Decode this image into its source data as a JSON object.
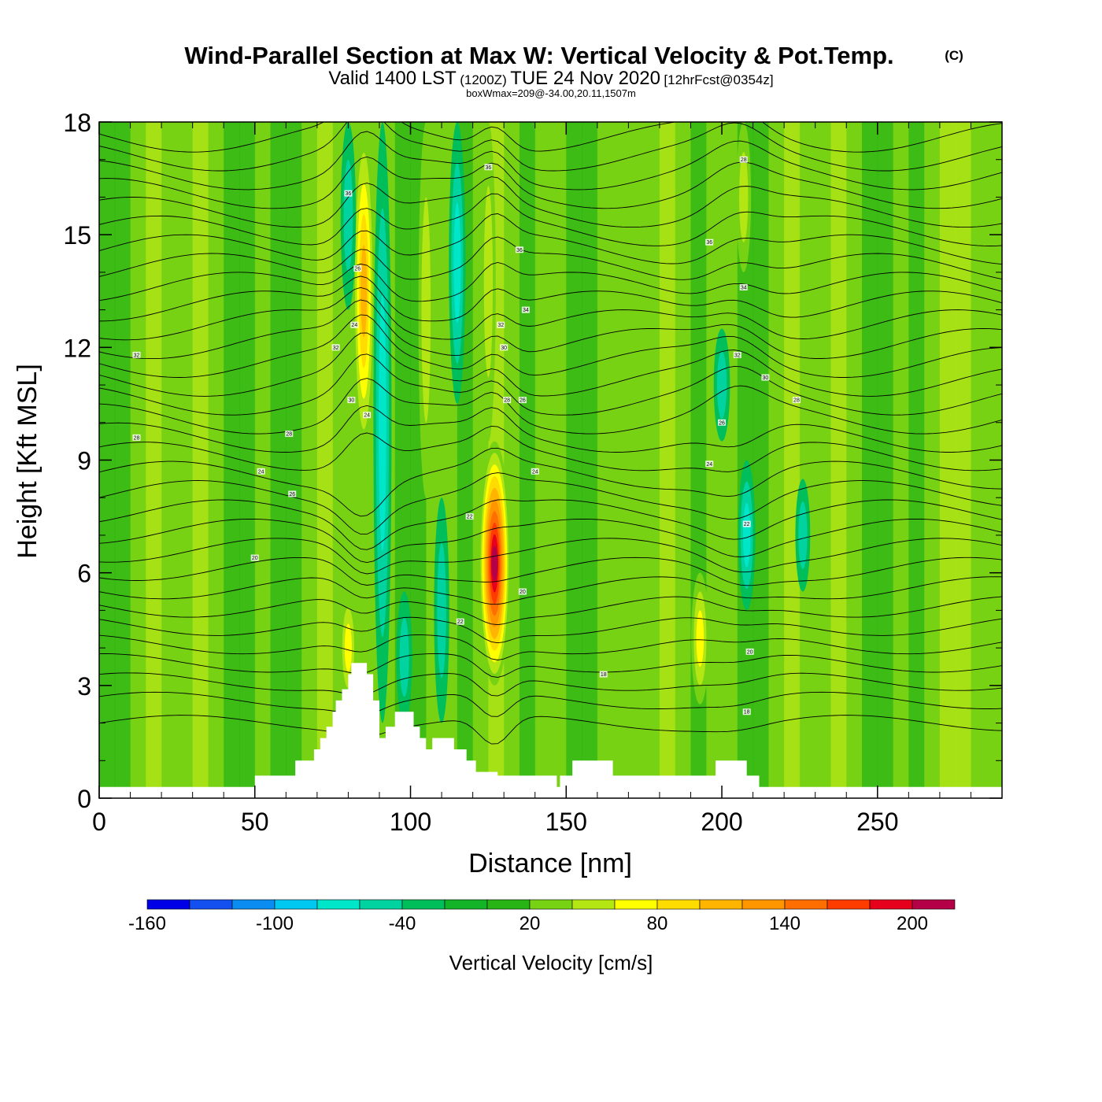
{
  "chart_data": {
    "type": "heatmap",
    "title": {
      "main": "Wind-Parallel Section at Max W: Vertical Velocity & Pot.Temp.",
      "copyright": "(C)",
      "valid_a": "Valid 1400 LST",
      "valid_b": "(1200Z)",
      "valid_c": "TUE 24 Nov 2020",
      "valid_d": "[12hrFcst@0354z]",
      "box": "boxWmax=209@-34.00,20.11,1507m"
    },
    "xlabel": "Distance [nm]",
    "ylabel": "Height [Kft MSL]",
    "xlim": [
      0,
      290
    ],
    "ylim": [
      0,
      18
    ],
    "xticks": [
      "0",
      "50",
      "100",
      "150",
      "200",
      "250"
    ],
    "xtick_values": [
      0,
      50,
      100,
      150,
      200,
      250
    ],
    "yticks": [
      "0",
      "3",
      "6",
      "9",
      "12",
      "15",
      "18"
    ],
    "ytick_values": [
      0,
      3,
      6,
      9,
      12,
      15,
      18
    ],
    "colorbar": {
      "label": "Vertical Velocity [cm/s]",
      "tick_labels": [
        "-160",
        "-100",
        "-40",
        "20",
        "80",
        "140",
        "200"
      ],
      "tick_values": [
        -160,
        -100,
        -40,
        20,
        80,
        140,
        200
      ],
      "bin_edges": [
        -160,
        -140,
        -120,
        -100,
        -80,
        -60,
        -40,
        -20,
        0,
        20,
        40,
        60,
        80,
        100,
        120,
        140,
        160,
        180,
        200,
        220
      ],
      "colors": [
        "#0000e6",
        "#1450f0",
        "#0a8cf0",
        "#00c8f0",
        "#00e6c8",
        "#00d2a0",
        "#00be5a",
        "#14b428",
        "#28b414",
        "#78d214",
        "#b4e614",
        "#ffff00",
        "#ffdc00",
        "#ffb400",
        "#ff9600",
        "#ff6e00",
        "#ff3c00",
        "#e6001e",
        "#b40046"
      ]
    },
    "w_features": [
      {
        "x": 85,
        "z_min": 9.0,
        "z_max": 18.0,
        "w": 110
      },
      {
        "x": 80,
        "z_min": 2.5,
        "z_max": 5.5,
        "w": 60
      },
      {
        "x": 127,
        "z_min": 3.0,
        "z_max": 9.5,
        "w": 209
      },
      {
        "x": 105,
        "z_min": 8.0,
        "z_max": 18.0,
        "w": 45
      },
      {
        "x": 125,
        "z_min": 9.5,
        "z_max": 18.0,
        "w": 40
      },
      {
        "x": 193,
        "z_min": 2.5,
        "z_max": 6.0,
        "w": 70
      },
      {
        "x": 207,
        "z_min": 14.0,
        "z_max": 18.0,
        "w": 40
      },
      {
        "x": 172,
        "z_min": 12.0,
        "z_max": 16.0,
        "w": 30
      },
      {
        "x": 91,
        "z_min": 2.0,
        "z_max": 18.0,
        "w": -75
      },
      {
        "x": 115,
        "z_min": 10.5,
        "z_max": 18.0,
        "w": -60
      },
      {
        "x": 110,
        "z_min": 2.0,
        "z_max": 8.0,
        "w": -45
      },
      {
        "x": 98,
        "z_min": 2.0,
        "z_max": 5.5,
        "w": -50
      },
      {
        "x": 208,
        "z_min": 5.0,
        "z_max": 9.0,
        "w": -65
      },
      {
        "x": 200,
        "z_min": 9.5,
        "z_max": 12.5,
        "w": -55
      },
      {
        "x": 226,
        "z_min": 5.5,
        "z_max": 8.5,
        "w": -40
      },
      {
        "x": 80,
        "z_min": 13.0,
        "z_max": 18.0,
        "w": -45
      }
    ],
    "terrain_nm_kft": [
      [
        0,
        0.3
      ],
      [
        50,
        0.3
      ],
      [
        50,
        0.6
      ],
      [
        63,
        0.6
      ],
      [
        63,
        1.0
      ],
      [
        69,
        1.0
      ],
      [
        69,
        1.3
      ],
      [
        71,
        1.3
      ],
      [
        71,
        1.6
      ],
      [
        73,
        1.6
      ],
      [
        73,
        1.9
      ],
      [
        75,
        1.9
      ],
      [
        75,
        2.3
      ],
      [
        76,
        2.3
      ],
      [
        76,
        2.6
      ],
      [
        78,
        2.6
      ],
      [
        78,
        2.9
      ],
      [
        80,
        2.9
      ],
      [
        80,
        3.3
      ],
      [
        81,
        3.3
      ],
      [
        81,
        3.6
      ],
      [
        86,
        3.6
      ],
      [
        86,
        3.3
      ],
      [
        88,
        3.3
      ],
      [
        88,
        2.6
      ],
      [
        90,
        2.6
      ],
      [
        90,
        1.6
      ],
      [
        92,
        1.6
      ],
      [
        92,
        1.9
      ],
      [
        95,
        1.9
      ],
      [
        95,
        2.3
      ],
      [
        101,
        2.3
      ],
      [
        101,
        1.9
      ],
      [
        103,
        1.9
      ],
      [
        103,
        1.6
      ],
      [
        105,
        1.6
      ],
      [
        105,
        1.3
      ],
      [
        107,
        1.3
      ],
      [
        107,
        1.6
      ],
      [
        114,
        1.6
      ],
      [
        114,
        1.3
      ],
      [
        118,
        1.3
      ],
      [
        118,
        1.0
      ],
      [
        121,
        1.0
      ],
      [
        121,
        0.7
      ],
      [
        128,
        0.7
      ],
      [
        128,
        0.6
      ],
      [
        147,
        0.6
      ],
      [
        147,
        0.3
      ],
      [
        148,
        0.3
      ],
      [
        148,
        0.6
      ],
      [
        152,
        0.6
      ],
      [
        152,
        1.0
      ],
      [
        165,
        1.0
      ],
      [
        165,
        0.6
      ],
      [
        198,
        0.6
      ],
      [
        198,
        1.0
      ],
      [
        208,
        1.0
      ],
      [
        208,
        0.6
      ],
      [
        212,
        0.6
      ],
      [
        212,
        0.3
      ],
      [
        290,
        0.3
      ]
    ],
    "theta_contours": {
      "base_kft": [
        2.0,
        2.6,
        3.1,
        3.6,
        4.1,
        4.6,
        5.1,
        5.6,
        6.1,
        6.6,
        7.1,
        7.6,
        8.1,
        8.6,
        9.1,
        9.6,
        10.1,
        10.6,
        11.1,
        11.6,
        12.1,
        12.6,
        13.1,
        13.6,
        14.1,
        14.6,
        15.1,
        15.6,
        16.1,
        16.6,
        17.1,
        17.6
      ],
      "labels": [
        {
          "text": "32",
          "x": 12,
          "z": 11.8
        },
        {
          "text": "28",
          "x": 12,
          "z": 9.6
        },
        {
          "text": "28",
          "x": 61,
          "z": 9.7
        },
        {
          "text": "24",
          "x": 52,
          "z": 8.7
        },
        {
          "text": "26",
          "x": 62,
          "z": 8.1
        },
        {
          "text": "20",
          "x": 50,
          "z": 6.4
        },
        {
          "text": "36",
          "x": 80,
          "z": 16.1
        },
        {
          "text": "26",
          "x": 83,
          "z": 14.1
        },
        {
          "text": "24",
          "x": 82,
          "z": 12.6
        },
        {
          "text": "32",
          "x": 76,
          "z": 12.0
        },
        {
          "text": "30",
          "x": 81,
          "z": 10.6
        },
        {
          "text": "24",
          "x": 86,
          "z": 10.2
        },
        {
          "text": "36",
          "x": 125,
          "z": 16.8
        },
        {
          "text": "36",
          "x": 135,
          "z": 14.6
        },
        {
          "text": "34",
          "x": 137,
          "z": 13.0
        },
        {
          "text": "32",
          "x": 129,
          "z": 12.6
        },
        {
          "text": "30",
          "x": 130,
          "z": 12.0
        },
        {
          "text": "28",
          "x": 131,
          "z": 10.6
        },
        {
          "text": "26",
          "x": 136,
          "z": 10.6
        },
        {
          "text": "24",
          "x": 140,
          "z": 8.7
        },
        {
          "text": "22",
          "x": 119,
          "z": 7.5
        },
        {
          "text": "20",
          "x": 136,
          "z": 5.5
        },
        {
          "text": "22",
          "x": 116,
          "z": 4.7
        },
        {
          "text": "18",
          "x": 162,
          "z": 3.3
        },
        {
          "text": "28",
          "x": 207,
          "z": 17.0
        },
        {
          "text": "36",
          "x": 196,
          "z": 14.8
        },
        {
          "text": "34",
          "x": 207,
          "z": 13.6
        },
        {
          "text": "32",
          "x": 205,
          "z": 11.8
        },
        {
          "text": "30",
          "x": 214,
          "z": 11.2
        },
        {
          "text": "28",
          "x": 224,
          "z": 10.6
        },
        {
          "text": "26",
          "x": 200,
          "z": 10.0
        },
        {
          "text": "24",
          "x": 196,
          "z": 8.9
        },
        {
          "text": "22",
          "x": 208,
          "z": 7.3
        },
        {
          "text": "20",
          "x": 209,
          "z": 3.9
        },
        {
          "text": "18",
          "x": 208,
          "z": 2.3
        }
      ]
    }
  }
}
